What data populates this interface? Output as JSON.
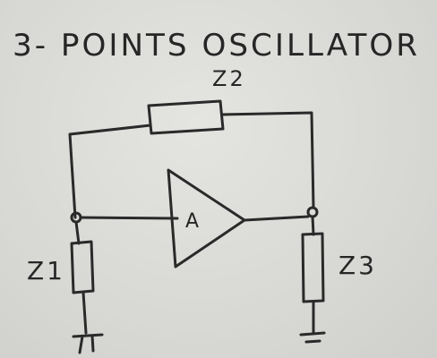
{
  "diagram": {
    "title": "3- POINTS OSCILLATOR",
    "labels": {
      "z1": "Z1",
      "z2": "Z2",
      "z3": "Z3",
      "amplifier": "A"
    }
  },
  "colors": {
    "whiteboard": "#d9d9d6",
    "ink": "#2a2a2a"
  }
}
